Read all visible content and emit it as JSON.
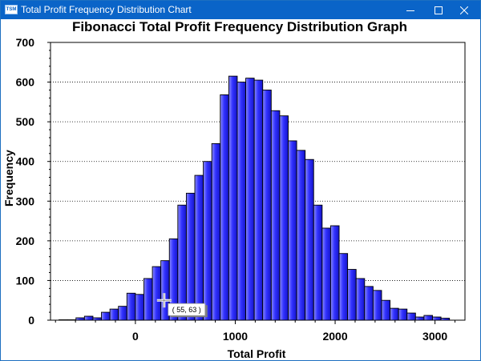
{
  "window": {
    "title": "Total Profit Frequency Distribution Chart",
    "app_icon_text": "TSM",
    "buttons": [
      "minimize",
      "maximize",
      "close"
    ],
    "title_bar_color": "#0a64c8"
  },
  "chart_data": {
    "type": "bar",
    "title": "Fibonacci Total Profit Frequency Distribution Graph",
    "xlabel": "Total Profit",
    "ylabel": "Frequency",
    "xlim": [
      -850,
      3300
    ],
    "ylim": [
      0,
      700
    ],
    "xticks": [
      0,
      1000,
      2000,
      3000
    ],
    "yticks": [
      0,
      100,
      200,
      300,
      400,
      500,
      600,
      700
    ],
    "grid": "dotted-horizontal",
    "bar_color": "#3232ff",
    "bin_width": 85,
    "bin_starts": [
      -765,
      -680,
      -595,
      -510,
      -425,
      -340,
      -255,
      -170,
      -85,
      0,
      85,
      170,
      255,
      340,
      425,
      510,
      595,
      680,
      765,
      850,
      935,
      1020,
      1105,
      1190,
      1275,
      1360,
      1445,
      1530,
      1615,
      1700,
      1785,
      1870,
      1955,
      2040,
      2125,
      2210,
      2295,
      2380,
      2465,
      2550,
      2635,
      2720,
      2805,
      2890,
      2975,
      3060
    ],
    "values": [
      1,
      1,
      6,
      10,
      6,
      20,
      28,
      35,
      68,
      65,
      105,
      135,
      150,
      205,
      290,
      320,
      365,
      400,
      445,
      568,
      615,
      600,
      610,
      605,
      580,
      528,
      515,
      452,
      428,
      405,
      290,
      232,
      238,
      168,
      128,
      105,
      85,
      75,
      50,
      30,
      28,
      18,
      8,
      12,
      8,
      5
    ],
    "cursor": {
      "x": 288,
      "y": 50,
      "label": "( 55, 63 )"
    }
  }
}
